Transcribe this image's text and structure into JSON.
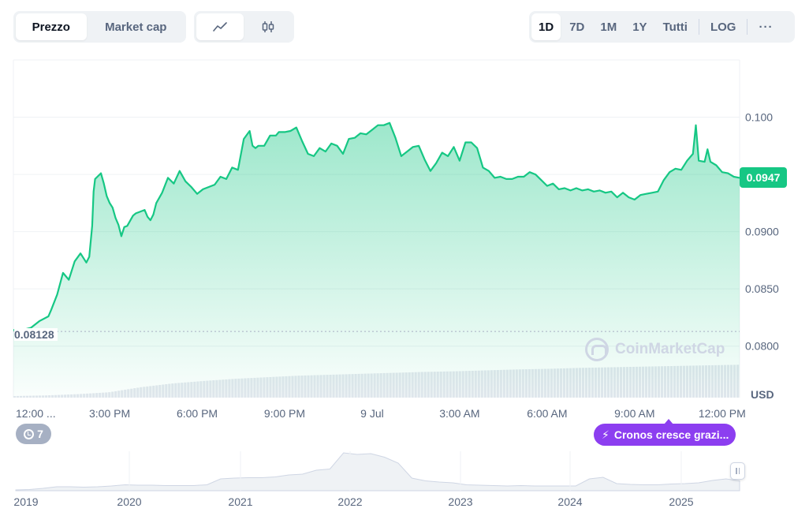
{
  "toolbar": {
    "type_tabs": [
      {
        "label": "Prezzo",
        "active": true
      },
      {
        "label": "Market cap",
        "active": false
      }
    ],
    "style_tabs": [
      {
        "icon": "line-chart-icon",
        "active": true
      },
      {
        "icon": "candlestick-icon",
        "active": false
      }
    ],
    "range_tabs": [
      {
        "label": "1D",
        "active": true
      },
      {
        "label": "7D",
        "active": false
      },
      {
        "label": "1M",
        "active": false
      },
      {
        "label": "1Y",
        "active": false
      },
      {
        "label": "Tutti",
        "active": false
      }
    ],
    "log_label": "LOG",
    "more_icon": "more-horizontal-icon"
  },
  "price_badge": "0.0947",
  "reference_label": "0.08128",
  "watermark": "CoinMarketCap",
  "history_count": "7",
  "event_label": "Cronos cresce grazi...",
  "colors": {
    "up": "#16c784",
    "event": "#8c3ef0",
    "muted": "#58667e",
    "grid": "#eff2f5"
  },
  "chart_data": {
    "type": "area",
    "currency_label": "USD",
    "ylim": [
      0.0755,
      0.105
    ],
    "y_ticks": [
      {
        "value": 0.08,
        "label": "0.0800"
      },
      {
        "value": 0.085,
        "label": "0.0850"
      },
      {
        "value": 0.09,
        "label": "0.0900"
      },
      {
        "value": 0.095,
        "label": ""
      },
      {
        "value": 0.1,
        "label": "0.100"
      }
    ],
    "xlim": [
      11.7,
      36.6
    ],
    "x_ticks": [
      {
        "hour": 12.0,
        "label": "12:00 ..."
      },
      {
        "hour": 15.0,
        "label": "3:00 PM"
      },
      {
        "hour": 18.0,
        "label": "6:00 PM"
      },
      {
        "hour": 21.0,
        "label": "9:00 PM"
      },
      {
        "hour": 24.0,
        "label": "9 Jul"
      },
      {
        "hour": 27.0,
        "label": "3:00 AM"
      },
      {
        "hour": 30.0,
        "label": "6:00 AM"
      },
      {
        "hour": 33.0,
        "label": "9:00 AM"
      },
      {
        "hour": 36.0,
        "label": "12:00 PM"
      }
    ],
    "reference_price": 0.08128,
    "last_price": 0.0947,
    "series": [
      {
        "x": [
          11.7,
          12.0,
          12.3,
          12.6,
          12.9,
          13.0,
          13.2,
          13.4,
          13.6,
          13.8,
          14.0,
          14.2,
          14.3,
          14.4,
          14.45,
          14.5,
          14.7,
          14.8,
          14.9,
          15.0,
          15.1,
          15.2,
          15.3,
          15.4,
          15.5,
          15.6,
          15.8,
          15.9,
          16.0,
          16.2,
          16.3,
          16.4,
          16.5,
          16.6,
          16.8,
          17.0,
          17.2,
          17.4,
          17.6,
          17.8,
          18.0,
          18.2,
          18.4,
          18.6,
          18.8,
          19.0,
          19.2,
          19.4,
          19.6,
          19.8,
          19.9,
          20.0,
          20.1,
          20.3,
          20.5,
          20.7,
          20.8,
          21.0,
          21.2,
          21.4,
          21.6,
          21.8,
          22.0,
          22.2,
          22.4,
          22.6,
          22.8,
          23.0,
          23.2,
          23.4,
          23.6,
          23.8,
          24.0,
          24.2,
          24.4,
          24.6,
          24.8,
          25.0,
          25.2,
          25.4,
          25.6,
          25.8,
          26.0,
          26.2,
          26.4,
          26.6,
          26.8,
          27.0,
          27.2,
          27.4,
          27.6,
          27.8,
          28.0,
          28.2,
          28.4,
          28.6,
          28.8,
          29.0,
          29.2,
          29.4,
          29.6,
          29.8,
          30.0,
          30.2,
          30.4,
          30.6,
          30.8,
          31.0,
          31.2,
          31.4,
          31.6,
          31.8,
          32.0,
          32.2,
          32.4,
          32.6,
          32.8,
          33.0,
          33.2,
          33.4,
          33.6,
          33.8,
          34.0,
          34.2,
          34.4,
          34.6,
          34.8,
          35.0,
          35.1,
          35.2,
          35.4,
          35.5,
          35.6,
          35.8,
          36.0,
          36.2,
          36.4,
          36.6
        ],
        "y": [
          0.0814,
          0.0814,
          0.0816,
          0.0822,
          0.0826,
          0.0832,
          0.0845,
          0.0864,
          0.0858,
          0.0874,
          0.0881,
          0.0873,
          0.0878,
          0.0905,
          0.0935,
          0.0946,
          0.0951,
          0.0942,
          0.0931,
          0.0925,
          0.0921,
          0.0912,
          0.0906,
          0.0896,
          0.0904,
          0.0905,
          0.0914,
          0.0916,
          0.0917,
          0.0919,
          0.0913,
          0.091,
          0.0915,
          0.0925,
          0.0934,
          0.0947,
          0.0942,
          0.0953,
          0.0944,
          0.0939,
          0.0933,
          0.0937,
          0.0939,
          0.0941,
          0.0948,
          0.0946,
          0.0956,
          0.0954,
          0.0981,
          0.0988,
          0.0975,
          0.0973,
          0.0975,
          0.0975,
          0.0984,
          0.0984,
          0.0987,
          0.0987,
          0.0988,
          0.0991,
          0.0979,
          0.0968,
          0.0966,
          0.0973,
          0.097,
          0.0977,
          0.0975,
          0.0968,
          0.0981,
          0.0982,
          0.0986,
          0.0985,
          0.0989,
          0.0993,
          0.0993,
          0.0995,
          0.0982,
          0.0966,
          0.097,
          0.0974,
          0.0975,
          0.0963,
          0.0953,
          0.096,
          0.0969,
          0.0966,
          0.0974,
          0.0962,
          0.0978,
          0.0978,
          0.0973,
          0.0956,
          0.0953,
          0.0947,
          0.0948,
          0.0946,
          0.0946,
          0.0948,
          0.0948,
          0.0952,
          0.095,
          0.0945,
          0.094,
          0.0942,
          0.0937,
          0.0938,
          0.0936,
          0.0938,
          0.0936,
          0.0937,
          0.0935,
          0.0936,
          0.0934,
          0.0935,
          0.093,
          0.0934,
          0.093,
          0.0928,
          0.0932,
          0.0933,
          0.0934,
          0.0935,
          0.0945,
          0.0952,
          0.0955,
          0.0954,
          0.0962,
          0.0968,
          0.0993,
          0.0962,
          0.0961,
          0.0972,
          0.0961,
          0.0958,
          0.0952,
          0.0951,
          0.0948,
          0.0947
        ]
      }
    ],
    "volume_hint": [
      0.0,
      0.02,
      0.06,
      0.12,
      0.28,
      0.4,
      0.48,
      0.55,
      0.6,
      0.65,
      0.68,
      0.71,
      0.74,
      0.77,
      0.79,
      0.82,
      0.85,
      0.87,
      0.9,
      0.92,
      0.94,
      0.96,
      0.98,
      1.0
    ],
    "navigator": {
      "x_ticks": [
        "2019",
        "2020",
        "2021",
        "2022",
        "2023",
        "2024",
        "2025"
      ],
      "profile": [
        0.02,
        0.03,
        0.06,
        0.1,
        0.1,
        0.09,
        0.1,
        0.12,
        0.15,
        0.14,
        0.14,
        0.13,
        0.13,
        0.13,
        0.15,
        0.3,
        0.32,
        0.33,
        0.33,
        0.35,
        0.4,
        0.42,
        0.52,
        0.55,
        0.96,
        0.92,
        0.94,
        0.85,
        0.7,
        0.32,
        0.25,
        0.22,
        0.2,
        0.15,
        0.14,
        0.13,
        0.12,
        0.13,
        0.12,
        0.12,
        0.12,
        0.12,
        0.3,
        0.34,
        0.18,
        0.16,
        0.15,
        0.15,
        0.17,
        0.18,
        0.2,
        0.26,
        0.3,
        0.25
      ]
    }
  }
}
